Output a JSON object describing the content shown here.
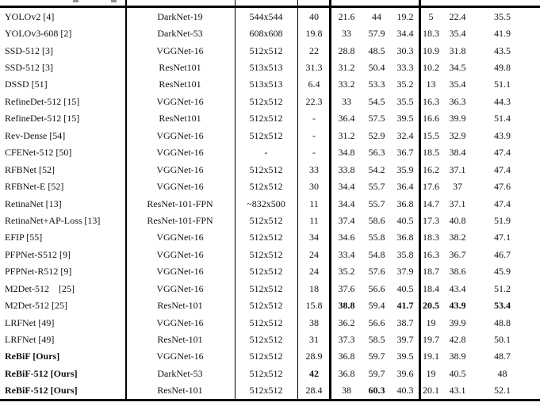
{
  "colors": {
    "background": "#ffffff",
    "text": "#111111",
    "rule": "#000000",
    "cropped_remnant": "#8f8f8f"
  },
  "table": {
    "rows": [
      {
        "cells": [
          "YOLOv2 [4]",
          "DarkNet-19",
          "544x544",
          "40",
          "21.6",
          "44",
          "19.2",
          "5",
          "22.4",
          "35.5"
        ],
        "bold": []
      },
      {
        "cells": [
          "YOLOv3-608 [2]",
          "DarkNet-53",
          "608x608",
          "19.8",
          "33",
          "57.9",
          "34.4",
          "18.3",
          "35.4",
          "41.9"
        ],
        "bold": []
      },
      {
        "cells": [
          "SSD-512 [3]",
          "VGGNet-16",
          "512x512",
          "22",
          "28.8",
          "48.5",
          "30.3",
          "10.9",
          "31.8",
          "43.5"
        ],
        "bold": []
      },
      {
        "cells": [
          "SSD-512 [3]",
          "ResNet101",
          "513x513",
          "31.3",
          "31.2",
          "50.4",
          "33.3",
          "10.2",
          "34.5",
          "49.8"
        ],
        "bold": []
      },
      {
        "cells": [
          "DSSD [51]",
          "ResNet101",
          "513x513",
          "6.4",
          "33.2",
          "53.3",
          "35.2",
          "13",
          "35.4",
          "51.1"
        ],
        "bold": []
      },
      {
        "cells": [
          "RefineDet-512 [15]",
          "VGGNet-16",
          "512x512",
          "22.3",
          "33",
          "54.5",
          "35.5",
          "16.3",
          "36.3",
          "44.3"
        ],
        "bold": []
      },
      {
        "cells": [
          "RefineDet-512 [15]",
          "ResNet101",
          "512x512",
          "-",
          "36.4",
          "57.5",
          "39.5",
          "16.6",
          "39.9",
          "51.4"
        ],
        "bold": []
      },
      {
        "cells": [
          "Rev-Dense [54]",
          "VGGNet-16",
          "512x512",
          "-",
          "31.2",
          "52.9",
          "32.4",
          "15.5",
          "32.9",
          "43.9"
        ],
        "bold": []
      },
      {
        "cells": [
          "CFENet-512 [50]",
          "VGGNet-16",
          "-",
          "-",
          "34.8",
          "56.3",
          "36.7",
          "18.5",
          "38.4",
          "47.4"
        ],
        "bold": []
      },
      {
        "cells": [
          "RFBNet [52]",
          "VGGNet-16",
          "512x512",
          "33",
          "33.8",
          "54.2",
          "35.9",
          "16.2",
          "37.1",
          "47.4"
        ],
        "bold": []
      },
      {
        "cells": [
          "RFBNet-E [52]",
          "VGGNet-16",
          "512x512",
          "30",
          "34.4",
          "55.7",
          "36.4",
          "17.6",
          "37",
          "47.6"
        ],
        "bold": []
      },
      {
        "cells": [
          "RetinaNet [13]",
          "ResNet-101-FPN",
          "~832x500",
          "11",
          "34.4",
          "55.7",
          "36.8",
          "14.7",
          "37.1",
          "47.4"
        ],
        "bold": []
      },
      {
        "cells": [
          "RetinaNet+AP-Loss [13]",
          "ResNet-101-FPN",
          "512x512",
          "11",
          "37.4",
          "58.6",
          "40.5",
          "17.3",
          "40.8",
          "51.9"
        ],
        "bold": []
      },
      {
        "cells": [
          "EFIP [55]",
          "VGGNet-16",
          "512x512",
          "34",
          "34.6",
          "55.8",
          "36.8",
          "18.3",
          "38.2",
          "47.1"
        ],
        "bold": []
      },
      {
        "cells": [
          "PFPNet-S512 [9]",
          "VGGNet-16",
          "512x512",
          "24",
          "33.4",
          "54.8",
          "35.8",
          "16.3",
          "36.7",
          "46.7"
        ],
        "bold": []
      },
      {
        "cells": [
          "PFPNet-R512 [9]",
          "VGGNet-16",
          "512x512",
          "24",
          "35.2",
          "57.6",
          "37.9",
          "18.7",
          "38.6",
          "45.9"
        ],
        "bold": []
      },
      {
        "cells": [
          "M2Det-512    [25]",
          "VGGNet-16",
          "512x512",
          "18",
          "37.6",
          "56.6",
          "40.5",
          "18.4",
          "43.4",
          "51.2"
        ],
        "bold": []
      },
      {
        "cells": [
          "M2Det-512 [25]",
          "ResNet-101",
          "512x512",
          "15.8",
          "38.8",
          "59.4",
          "41.7",
          "20.5",
          "43.9",
          "53.4"
        ],
        "bold": [
          4,
          6,
          7,
          8,
          9
        ]
      },
      {
        "cells": [
          "LRFNet [49]",
          "VGGNet-16",
          "512x512",
          "38",
          "36.2",
          "56.6",
          "38.7",
          "19",
          "39.9",
          "48.8"
        ],
        "bold": []
      },
      {
        "cells": [
          "LRFNet [49]",
          "ResNet-101",
          "512x512",
          "31",
          "37.3",
          "58.5",
          "39.7",
          "19.7",
          "42.8",
          "50.1"
        ],
        "bold": []
      },
      {
        "cells": [
          "ReBiF [Ours]",
          "VGGNet-16",
          "512x512",
          "28.9",
          "36.8",
          "59.7",
          "39.5",
          "19.1",
          "38.9",
          "48.7"
        ],
        "bold": [
          0
        ]
      },
      {
        "cells": [
          "ReBiF-512 [Ours]",
          "DarkNet-53",
          "512x512",
          "42",
          "36.8",
          "59.7",
          "39.6",
          "19",
          "40.5",
          "48"
        ],
        "bold": [
          0,
          3
        ]
      },
      {
        "cells": [
          "ReBiF-512 [Ours]",
          "ResNet-101",
          "512x512",
          "28.4",
          "38",
          "60.3",
          "40.3",
          "20.1",
          "43.1",
          "52.1"
        ],
        "bold": [
          0,
          5
        ]
      }
    ]
  }
}
